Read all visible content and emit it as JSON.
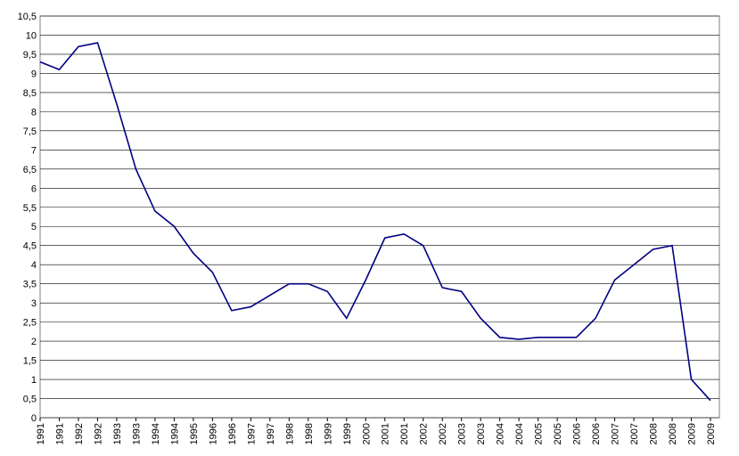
{
  "chart_data": {
    "type": "line",
    "categories": [
      "1991",
      "1991",
      "1992",
      "1992",
      "1993",
      "1993",
      "1994",
      "1994",
      "1995",
      "1996",
      "1996",
      "1997",
      "1997",
      "1998",
      "1998",
      "1999",
      "1999",
      "2000",
      "2001",
      "2001",
      "2002",
      "2002",
      "2003",
      "2003",
      "2004",
      "2004",
      "2005",
      "2005",
      "2006",
      "2006",
      "2007",
      "2007",
      "2008",
      "2008",
      "2009",
      "2009"
    ],
    "series": [
      {
        "color": "#000080",
        "values": [
          9.3,
          9.1,
          9.7,
          9.8,
          8.2,
          6.5,
          5.4,
          5.0,
          4.3,
          3.8,
          2.8,
          2.9,
          3.2,
          3.5,
          3.5,
          3.3,
          2.6,
          3.6,
          4.7,
          4.8,
          4.5,
          3.4,
          3.3,
          2.6,
          2.1,
          2.05,
          2.1,
          2.1,
          2.1,
          2.6,
          3.6,
          4.0,
          4.4,
          4.5,
          1.0,
          0.45
        ]
      }
    ],
    "ylim": [
      0,
      10.5
    ],
    "yticks": [
      0,
      {
        "value": 0.5,
        "label": "0,5"
      },
      1,
      {
        "value": 1.5,
        "label": "1,5"
      },
      2,
      {
        "value": 2.5,
        "label": "2,5"
      },
      3,
      {
        "value": 3.5,
        "label": "3,5"
      },
      4,
      {
        "value": 4.5,
        "label": "4,5"
      },
      5,
      {
        "value": 5.5,
        "label": "5,5"
      },
      6,
      {
        "value": 6.5,
        "label": "6,5"
      },
      7,
      {
        "value": 7.5,
        "label": "7,5"
      },
      8,
      {
        "value": 8.5,
        "label": "8,5"
      },
      9,
      {
        "value": 9.5,
        "label": "9,5"
      },
      10,
      {
        "value": 10.5,
        "label": "10,5"
      }
    ],
    "grid": true
  }
}
